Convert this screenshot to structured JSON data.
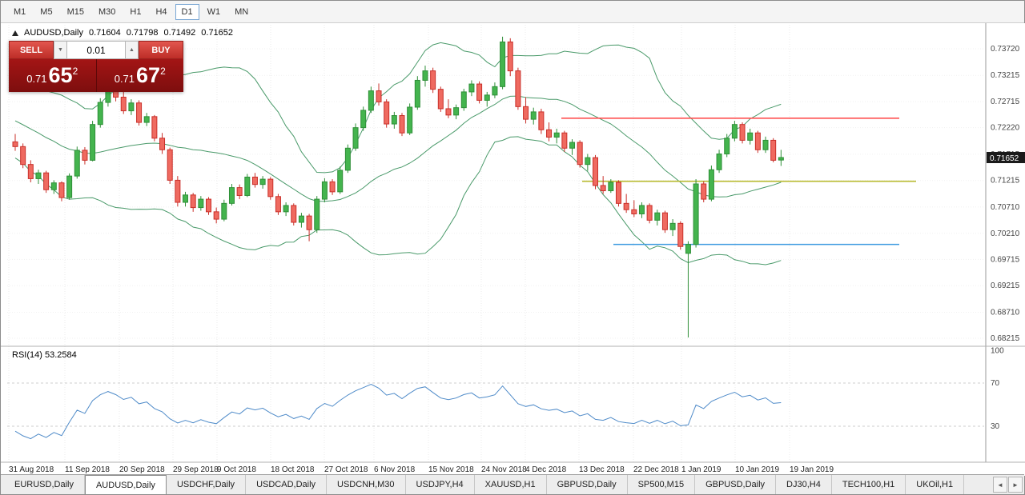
{
  "toolbar": {
    "timeframes": [
      "M1",
      "M5",
      "M15",
      "M30",
      "H1",
      "H4",
      "D1",
      "W1",
      "MN"
    ],
    "active": "D1"
  },
  "chart": {
    "header": {
      "symbol": "AUDUSD,Daily",
      "open": "0.71604",
      "high": "0.71798",
      "low": "0.71492",
      "close": "0.71652"
    },
    "trade_panel": {
      "sell_label": "SELL",
      "buy_label": "BUY",
      "volume": "0.01",
      "volume_down_icon": "▼",
      "volume_up_icon": "▲",
      "sell_price": {
        "base": "0.71",
        "pips": "65",
        "sup": "2"
      },
      "buy_price": {
        "base": "0.71",
        "pips": "67",
        "sup": "2"
      }
    },
    "current_price": "0.71652",
    "colors": {
      "bull": "#44b44e",
      "bull_border": "#2f8f38",
      "bear": "#ef6a60",
      "bear_border": "#c9302a",
      "bollinger": "#4a9a6a",
      "rsi_line": "#4f8bc9",
      "price_tag_bg": "#1a1a1a"
    }
  },
  "rsi_panel": {
    "label": "RSI(14) 53.2584"
  },
  "chart_data": [
    {
      "type": "candlestick",
      "title": "AUDUSD,Daily",
      "ylim": [
        0.68215,
        0.7372
      ],
      "y_ticks": [
        "0.73720",
        "0.73215",
        "0.72715",
        "0.72220",
        "0.71715",
        "0.71215",
        "0.70710",
        "0.70210",
        "0.69715",
        "0.69215",
        "0.68710",
        "0.68215"
      ],
      "x_ticks": [
        "31 Aug 2018",
        "11 Sep 2018",
        "20 Sep 2018",
        "29 Sep 2018",
        "9 Oct 2018",
        "18 Oct 2018",
        "27 Oct 2018",
        "6 Nov 2018",
        "15 Nov 2018",
        "24 Nov 2018",
        "4 Dec 2018",
        "13 Dec 2018",
        "22 Dec 2018",
        "1 Jan 2019",
        "10 Jan 2019",
        "19 Jan 2019"
      ],
      "overlays": {
        "bollinger_bands": {
          "period": 20,
          "deviation": 2
        }
      },
      "horizontal_lines": [
        {
          "name": "resistance-line",
          "price": 0.724,
          "color": "#ff5050",
          "x1": 700,
          "x2": 1122
        },
        {
          "name": "mid-line",
          "price": 0.712,
          "color": "#b8bb32",
          "x1": 726,
          "x2": 1143
        },
        {
          "name": "support-line",
          "price": 0.7,
          "color": "#3d9ae0",
          "x1": 765,
          "x2": 1122
        }
      ],
      "candles": [
        [
          0.7195,
          0.721,
          0.7178,
          0.7186
        ],
        [
          0.7186,
          0.7192,
          0.7145,
          0.7152
        ],
        [
          0.7152,
          0.716,
          0.7118,
          0.7125
        ],
        [
          0.7125,
          0.7142,
          0.7115,
          0.7136
        ],
        [
          0.7136,
          0.714,
          0.7098,
          0.7104
        ],
        [
          0.7104,
          0.7122,
          0.7096,
          0.7117
        ],
        [
          0.7117,
          0.712,
          0.7082,
          0.7089
        ],
        [
          0.7089,
          0.7135,
          0.7085,
          0.713
        ],
        [
          0.713,
          0.7186,
          0.7125,
          0.7179
        ],
        [
          0.7179,
          0.7185,
          0.7152,
          0.716
        ],
        [
          0.716,
          0.7235,
          0.7158,
          0.7228
        ],
        [
          0.7228,
          0.7278,
          0.7222,
          0.727
        ],
        [
          0.727,
          0.7304,
          0.7262,
          0.7296
        ],
        [
          0.7296,
          0.731,
          0.7272,
          0.728
        ],
        [
          0.728,
          0.7292,
          0.7248,
          0.7254
        ],
        [
          0.7254,
          0.7276,
          0.7246,
          0.7269
        ],
        [
          0.7269,
          0.7274,
          0.7226,
          0.7232
        ],
        [
          0.7232,
          0.725,
          0.7225,
          0.7243
        ],
        [
          0.7243,
          0.7246,
          0.7196,
          0.7202
        ],
        [
          0.7202,
          0.7212,
          0.7172,
          0.718
        ],
        [
          0.718,
          0.7184,
          0.7115,
          0.7122
        ],
        [
          0.7122,
          0.713,
          0.7072,
          0.708
        ],
        [
          0.708,
          0.71,
          0.7072,
          0.7094
        ],
        [
          0.7094,
          0.7098,
          0.7062,
          0.707
        ],
        [
          0.707,
          0.7092,
          0.7064,
          0.7086
        ],
        [
          0.7086,
          0.709,
          0.7056,
          0.7062
        ],
        [
          0.7062,
          0.707,
          0.704,
          0.7048
        ],
        [
          0.7048,
          0.7085,
          0.7044,
          0.7078
        ],
        [
          0.7078,
          0.7115,
          0.7074,
          0.7108
        ],
        [
          0.7108,
          0.7114,
          0.7086,
          0.7093
        ],
        [
          0.7093,
          0.7134,
          0.709,
          0.7128
        ],
        [
          0.7128,
          0.7136,
          0.7108,
          0.7114
        ],
        [
          0.7114,
          0.713,
          0.7106,
          0.7124
        ],
        [
          0.7124,
          0.7128,
          0.7085,
          0.7091
        ],
        [
          0.7091,
          0.7096,
          0.7056,
          0.7062
        ],
        [
          0.7062,
          0.708,
          0.7054,
          0.7074
        ],
        [
          0.7074,
          0.7078,
          0.7036,
          0.7042
        ],
        [
          0.7042,
          0.706,
          0.7032,
          0.7054
        ],
        [
          0.7054,
          0.7058,
          0.7006,
          0.7028
        ],
        [
          0.7028,
          0.7092,
          0.7022,
          0.7086
        ],
        [
          0.7086,
          0.7126,
          0.708,
          0.7119
        ],
        [
          0.7119,
          0.7124,
          0.7094,
          0.71
        ],
        [
          0.71,
          0.7148,
          0.7096,
          0.7141
        ],
        [
          0.7141,
          0.719,
          0.7136,
          0.7183
        ],
        [
          0.7183,
          0.723,
          0.7178,
          0.7222
        ],
        [
          0.7222,
          0.7262,
          0.7216,
          0.7255
        ],
        [
          0.7255,
          0.73,
          0.725,
          0.7292
        ],
        [
          0.7292,
          0.7306,
          0.7264,
          0.7271
        ],
        [
          0.7271,
          0.7276,
          0.7222,
          0.7229
        ],
        [
          0.7229,
          0.7252,
          0.722,
          0.7245
        ],
        [
          0.7245,
          0.725,
          0.7206,
          0.7212
        ],
        [
          0.7212,
          0.7268,
          0.7208,
          0.7261
        ],
        [
          0.7261,
          0.732,
          0.7256,
          0.7312
        ],
        [
          0.7312,
          0.734,
          0.73,
          0.733
        ],
        [
          0.733,
          0.7336,
          0.7288,
          0.7295
        ],
        [
          0.7295,
          0.73,
          0.7252,
          0.7258
        ],
        [
          0.7258,
          0.7276,
          0.724,
          0.7246
        ],
        [
          0.7246,
          0.7266,
          0.7238,
          0.726
        ],
        [
          0.726,
          0.7296,
          0.7254,
          0.729
        ],
        [
          0.729,
          0.7312,
          0.7282,
          0.7305
        ],
        [
          0.7305,
          0.731,
          0.7268,
          0.7274
        ],
        [
          0.7274,
          0.729,
          0.7262,
          0.7284
        ],
        [
          0.7284,
          0.7308,
          0.7278,
          0.73
        ],
        [
          0.73,
          0.7395,
          0.7295,
          0.7385
        ],
        [
          0.7385,
          0.7392,
          0.732,
          0.733
        ],
        [
          0.733,
          0.7336,
          0.7256,
          0.7262
        ],
        [
          0.7262,
          0.728,
          0.723,
          0.7238
        ],
        [
          0.7238,
          0.726,
          0.7228,
          0.7252
        ],
        [
          0.7252,
          0.7258,
          0.721,
          0.7218
        ],
        [
          0.7218,
          0.7232,
          0.7196,
          0.7204
        ],
        [
          0.7204,
          0.722,
          0.7192,
          0.7212
        ],
        [
          0.7212,
          0.7216,
          0.7176,
          0.7183
        ],
        [
          0.7183,
          0.72,
          0.717,
          0.7194
        ],
        [
          0.7194,
          0.7198,
          0.7146,
          0.7152
        ],
        [
          0.7152,
          0.7172,
          0.714,
          0.7165
        ],
        [
          0.7165,
          0.717,
          0.7105,
          0.7112
        ],
        [
          0.7112,
          0.713,
          0.7096,
          0.7102
        ],
        [
          0.7102,
          0.7124,
          0.7098,
          0.7118
        ],
        [
          0.7118,
          0.7122,
          0.7072,
          0.7078
        ],
        [
          0.7078,
          0.7096,
          0.706,
          0.7066
        ],
        [
          0.7066,
          0.7084,
          0.7052,
          0.7058
        ],
        [
          0.7058,
          0.708,
          0.705,
          0.7074
        ],
        [
          0.7074,
          0.7078,
          0.704,
          0.7046
        ],
        [
          0.7046,
          0.7066,
          0.7036,
          0.706
        ],
        [
          0.706,
          0.7064,
          0.7022,
          0.7028
        ],
        [
          0.7028,
          0.7048,
          0.7016,
          0.704
        ],
        [
          0.704,
          0.7044,
          0.699,
          0.6996
        ],
        [
          0.6983,
          0.7006,
          0.6823,
          0.7
        ],
        [
          0.7,
          0.7124,
          0.6994,
          0.7115
        ],
        [
          0.7115,
          0.712,
          0.708,
          0.7086
        ],
        [
          0.7086,
          0.715,
          0.7082,
          0.7142
        ],
        [
          0.7142,
          0.718,
          0.7136,
          0.7172
        ],
        [
          0.7172,
          0.721,
          0.7166,
          0.7202
        ],
        [
          0.7202,
          0.7235,
          0.7196,
          0.7228
        ],
        [
          0.7228,
          0.7232,
          0.7192,
          0.7198
        ],
        [
          0.7198,
          0.722,
          0.719,
          0.7212
        ],
        [
          0.7212,
          0.7216,
          0.7174,
          0.718
        ],
        [
          0.718,
          0.7205,
          0.7174,
          0.7198
        ],
        [
          0.7198,
          0.7202,
          0.7156,
          0.716
        ],
        [
          0.71604,
          0.71798,
          0.71492,
          0.71652
        ]
      ]
    },
    {
      "type": "line",
      "name": "RSI(14)",
      "period": 14,
      "current_value": 53.2584,
      "levels": [
        100,
        70,
        30
      ]
    }
  ],
  "tabs": {
    "items": [
      "EURUSD,Daily",
      "AUDUSD,Daily",
      "USDCHF,Daily",
      "USDCAD,Daily",
      "USDCNH,M30",
      "USDJPY,H4",
      "XAUUSD,H1",
      "GBPUSD,Daily",
      "SP500,M15",
      "GBPUSD,Daily",
      "DJ30,H4",
      "TECH100,H1",
      "UKOil,H1"
    ],
    "active_index": 1,
    "scroll_left_icon": "◄",
    "scroll_right_icon": "►"
  }
}
